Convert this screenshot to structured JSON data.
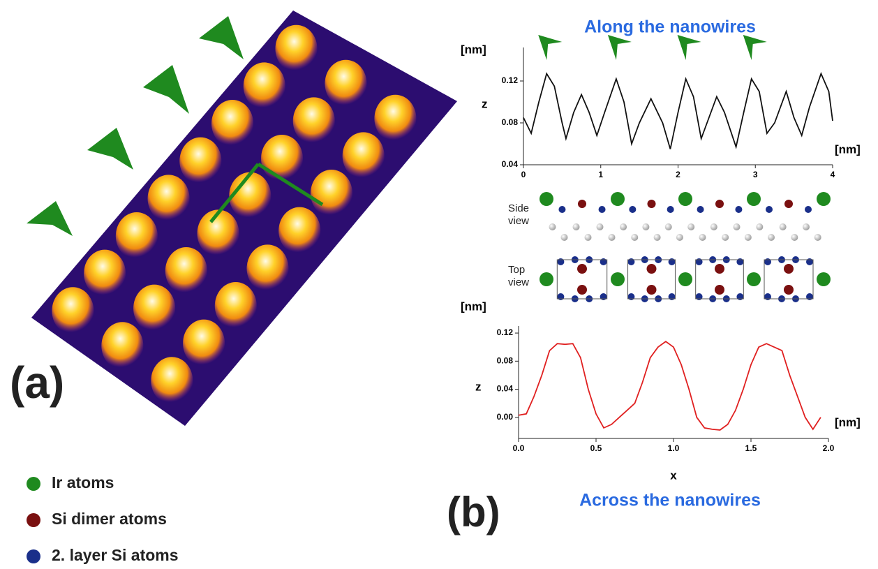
{
  "panel_labels": [
    "(a)",
    "(b)"
  ],
  "legend": [
    {
      "label": "Ir atoms",
      "color": "#1f8a1f"
    },
    {
      "label": "Si dimer atoms",
      "color": "#7a1010"
    },
    {
      "label": "2. layer Si atoms",
      "color": "#1a2f8a"
    }
  ],
  "model_labels": {
    "side": "Side view",
    "top": "Top view"
  },
  "chart_data": [
    {
      "type": "line",
      "title": "Along the nanowires",
      "y_label": "z",
      "y_unit": "[nm]",
      "x_unit": "[nm]",
      "color": "#111111",
      "x": [
        0,
        0.1,
        0.2,
        0.3,
        0.4,
        0.5,
        0.55,
        0.65,
        0.75,
        0.85,
        0.95,
        1.05,
        1.2,
        1.3,
        1.4,
        1.5,
        1.65,
        1.8,
        1.9,
        2.0,
        2.1,
        2.2,
        2.3,
        2.4,
        2.5,
        2.6,
        2.75,
        2.85,
        2.95,
        3.05,
        3.15,
        3.25,
        3.4,
        3.5,
        3.6,
        3.7,
        3.85,
        3.95,
        4.0
      ],
      "values": [
        0.085,
        0.07,
        0.1,
        0.127,
        0.115,
        0.08,
        0.065,
        0.09,
        0.107,
        0.09,
        0.068,
        0.09,
        0.122,
        0.1,
        0.06,
        0.08,
        0.103,
        0.08,
        0.055,
        0.09,
        0.122,
        0.105,
        0.065,
        0.085,
        0.105,
        0.09,
        0.057,
        0.09,
        0.122,
        0.11,
        0.07,
        0.08,
        0.11,
        0.085,
        0.068,
        0.095,
        0.127,
        0.11,
        0.082
      ],
      "marker_x": [
        0.3,
        1.2,
        2.1,
        2.95
      ],
      "marker_color": "#1f8a1f",
      "xlim": [
        0,
        4
      ],
      "xticks": [
        0,
        1,
        2,
        3,
        4
      ],
      "ylim": [
        0.04,
        0.152
      ],
      "yticks": [
        0.04,
        0.08,
        0.12
      ]
    },
    {
      "type": "line",
      "title": "Across the nanowires",
      "x_label": "x",
      "y_label": "z",
      "y_unit": "[nm]",
      "x_unit": "[nm]",
      "color": "#e02020",
      "x": [
        0,
        0.05,
        0.1,
        0.15,
        0.2,
        0.25,
        0.3,
        0.35,
        0.4,
        0.45,
        0.5,
        0.55,
        0.6,
        0.65,
        0.7,
        0.75,
        0.8,
        0.85,
        0.9,
        0.95,
        1.0,
        1.05,
        1.1,
        1.15,
        1.2,
        1.25,
        1.3,
        1.35,
        1.4,
        1.45,
        1.5,
        1.55,
        1.6,
        1.65,
        1.7,
        1.75,
        1.8,
        1.85,
        1.9,
        1.95
      ],
      "values": [
        0.003,
        0.005,
        0.03,
        0.06,
        0.095,
        0.105,
        0.104,
        0.105,
        0.085,
        0.04,
        0.005,
        -0.015,
        -0.01,
        0.0,
        0.01,
        0.02,
        0.05,
        0.085,
        0.1,
        0.108,
        0.1,
        0.075,
        0.04,
        0.0,
        -0.015,
        -0.017,
        -0.018,
        -0.01,
        0.01,
        0.04,
        0.075,
        0.1,
        0.105,
        0.1,
        0.095,
        0.06,
        0.03,
        0.0,
        -0.017,
        0.0
      ],
      "xlim": [
        0,
        2.0
      ],
      "xticks": [
        {
          "value": 0,
          "label": "0.0"
        },
        {
          "value": 0.5,
          "label": "0.5"
        },
        {
          "value": 1,
          "label": "1.0"
        },
        {
          "value": 1.5,
          "label": "1.5"
        },
        {
          "value": 2,
          "label": "2.0"
        }
      ],
      "ylim": [
        -0.03,
        0.13
      ],
      "yticks": [
        {
          "value": 0,
          "label": "0.00"
        },
        0.04,
        0.08,
        0.12
      ]
    }
  ]
}
